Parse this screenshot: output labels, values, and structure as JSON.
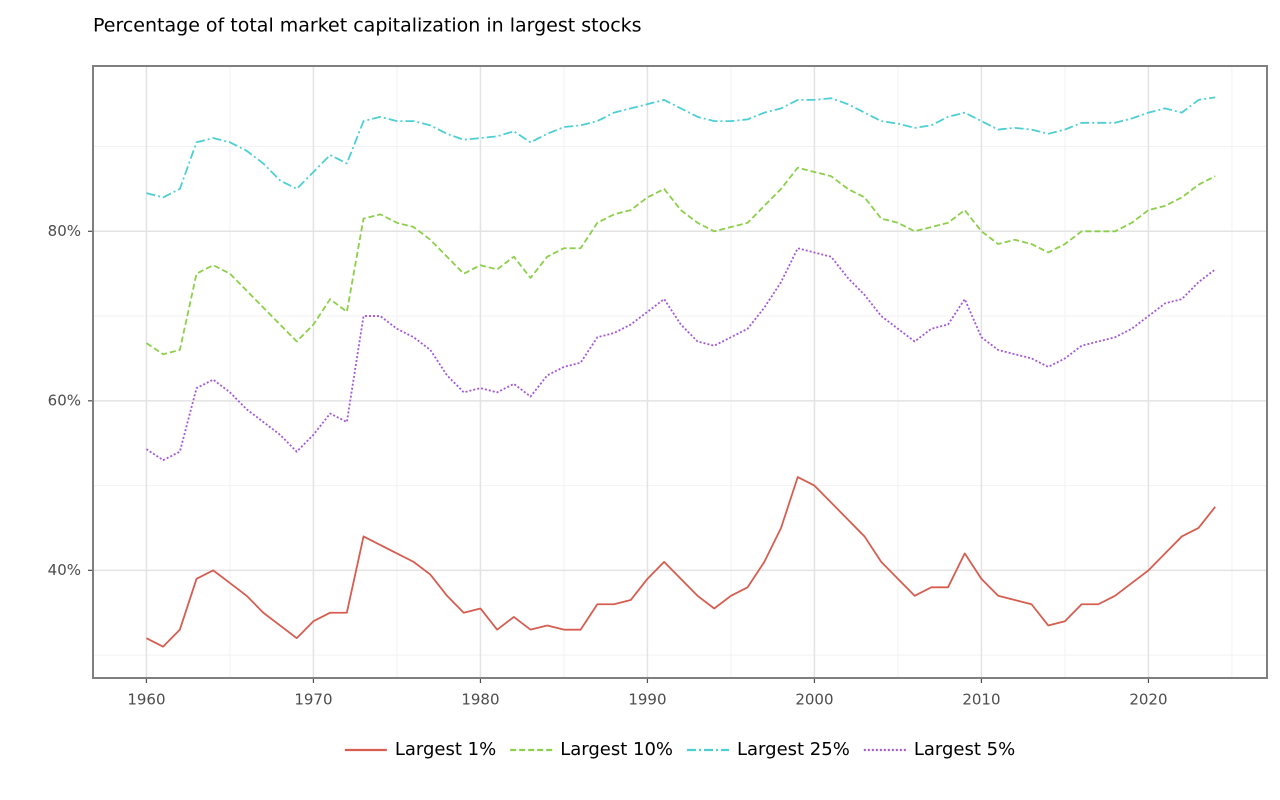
{
  "chart_data": {
    "type": "line",
    "title": "Percentage of total market capitalization in largest stocks",
    "x": [
      1960,
      1961,
      1962,
      1963,
      1964,
      1965,
      1966,
      1967,
      1968,
      1969,
      1970,
      1971,
      1972,
      1973,
      1974,
      1975,
      1976,
      1977,
      1978,
      1979,
      1980,
      1981,
      1982,
      1983,
      1984,
      1985,
      1986,
      1987,
      1988,
      1989,
      1990,
      1991,
      1992,
      1993,
      1994,
      1995,
      1996,
      1997,
      1998,
      1999,
      2000,
      2001,
      2002,
      2003,
      2004,
      2005,
      2006,
      2007,
      2008,
      2009,
      2010,
      2011,
      2012,
      2013,
      2014,
      2015,
      2016,
      2017,
      2018,
      2019,
      2020,
      2021,
      2022,
      2023,
      2024
    ],
    "series": [
      {
        "name": "Largest 1%",
        "color": "#d55e50",
        "dash": "solid",
        "values": [
          32,
          31,
          33,
          39,
          40,
          38.5,
          37,
          35,
          33.5,
          32,
          34,
          35,
          35,
          44,
          43,
          42,
          41,
          39.5,
          37,
          35,
          35.5,
          33,
          34.5,
          33,
          33.5,
          33,
          33,
          36,
          36,
          36.5,
          39,
          41,
          39,
          37,
          35.5,
          37,
          38,
          41,
          45,
          51,
          50,
          48,
          46,
          44,
          41,
          39,
          37,
          38,
          38,
          42,
          39,
          37,
          36.5,
          36,
          33.5,
          34,
          36,
          36,
          37,
          38.5,
          40,
          42,
          44,
          45,
          47.5
        ]
      },
      {
        "name": "Largest 10%",
        "color": "#8ccf4a",
        "dash": "dashed",
        "values": [
          66.8,
          65.5,
          66,
          75,
          76,
          75,
          73,
          71,
          69,
          67,
          69,
          72,
          70.5,
          81.5,
          82,
          81,
          80.5,
          79,
          77,
          75,
          76,
          75.5,
          77,
          74.5,
          77,
          78,
          78,
          81,
          82,
          82.5,
          84,
          85,
          82.5,
          81,
          80,
          80.5,
          81,
          83,
          85,
          87.5,
          87,
          86.5,
          85,
          84,
          81.5,
          81,
          80,
          80.5,
          81,
          82.5,
          80,
          78.5,
          79,
          78.5,
          77.5,
          78.5,
          80,
          80,
          80,
          81,
          82.5,
          83,
          84,
          85.5,
          86.5
        ]
      },
      {
        "name": "Largest 25%",
        "color": "#4dcfd4",
        "dash": "dashdot",
        "values": [
          84.5,
          84,
          85,
          90.5,
          91,
          90.5,
          89.5,
          88,
          86,
          85,
          87,
          89,
          88,
          93,
          93.5,
          93,
          93,
          92.5,
          91.5,
          90.8,
          91,
          91.2,
          91.8,
          90.5,
          91.5,
          92.3,
          92.5,
          93,
          94,
          94.5,
          95,
          95.5,
          94.5,
          93.5,
          93,
          93,
          93.2,
          94,
          94.5,
          95.5,
          95.5,
          95.7,
          95,
          94,
          93,
          92.7,
          92.2,
          92.5,
          93.5,
          94,
          93,
          92,
          92.2,
          92,
          91.5,
          92,
          92.8,
          92.8,
          92.8,
          93.3,
          94,
          94.5,
          94,
          95.5,
          95.8
        ]
      },
      {
        "name": "Largest 5%",
        "color": "#a457d9",
        "dash": "dotted",
        "values": [
          54.3,
          53,
          54,
          61.5,
          62.5,
          61,
          59,
          57.5,
          56,
          54,
          56,
          58.5,
          57.5,
          70,
          70,
          68.5,
          67.5,
          66,
          63,
          61,
          61.5,
          61,
          62,
          60.5,
          63,
          64,
          64.5,
          67.5,
          68,
          69,
          70.5,
          72,
          69,
          67,
          66.5,
          67.5,
          68.5,
          71,
          74,
          78,
          77.5,
          77,
          74.5,
          72.5,
          70,
          68.5,
          67,
          68.5,
          69,
          72,
          67.5,
          66,
          65.5,
          65,
          64,
          65,
          66.5,
          67,
          67.5,
          68.5,
          70,
          71.5,
          72,
          74,
          75.5
        ]
      }
    ],
    "xlim": [
      1956.8,
      2027.1
    ],
    "xticks": [
      1960,
      1970,
      1980,
      1990,
      2000,
      2010,
      2020
    ],
    "minor_xticks": [
      1965,
      1975,
      1985,
      1995,
      2005,
      2015,
      2025
    ],
    "ylim": [
      27.3,
      99.5
    ],
    "yticks": [
      {
        "value": 40,
        "label": "40%"
      },
      {
        "value": 60,
        "label": "60%"
      },
      {
        "value": 80,
        "label": "80%"
      }
    ],
    "minor_yticks": [
      30,
      50,
      70,
      90
    ],
    "grid": true,
    "legend": "bottom"
  }
}
